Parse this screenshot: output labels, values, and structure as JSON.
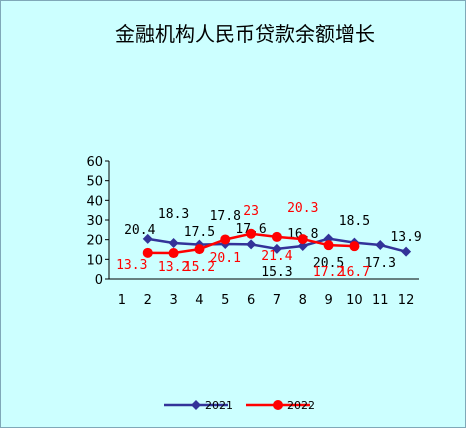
{
  "chart_data": {
    "type": "line",
    "title": "金融机构人民币贷款余额增长",
    "xlabel": "",
    "ylabel": "",
    "categories": [
      "1",
      "2",
      "3",
      "4",
      "5",
      "6",
      "7",
      "8",
      "9",
      "10",
      "11",
      "12"
    ],
    "y_ticks": [
      "0",
      "10",
      "20",
      "30",
      "40",
      "50",
      "60"
    ],
    "ylim": [
      0,
      60
    ],
    "grid": false,
    "legend_position": "bottom",
    "series": [
      {
        "name": "2021",
        "color": "#333399",
        "marker": "diamond",
        "label_color": "#000000",
        "values": [
          null,
          20.4,
          18.3,
          17.5,
          17.8,
          17.6,
          15.3,
          16.8,
          20.5,
          18.5,
          17.3,
          13.9
        ],
        "labels": [
          null,
          "20.4",
          "18.3",
          "17.5",
          "17.8",
          "17.6",
          "15.3",
          "16.8",
          "20.5",
          "18.5",
          "17.3",
          "13.9"
        ]
      },
      {
        "name": "2022",
        "color": "#ff0000",
        "marker": "circle",
        "label_color": "#ff0000",
        "values": [
          null,
          13.3,
          13.2,
          15.2,
          20.1,
          23,
          21.4,
          20.3,
          17.2,
          16.7,
          null,
          null
        ],
        "labels": [
          null,
          "13.3",
          "13.2",
          "15.2",
          "20.1",
          "23",
          "21.4",
          "20.3",
          "17.2",
          "16.7",
          null,
          null
        ]
      }
    ]
  }
}
